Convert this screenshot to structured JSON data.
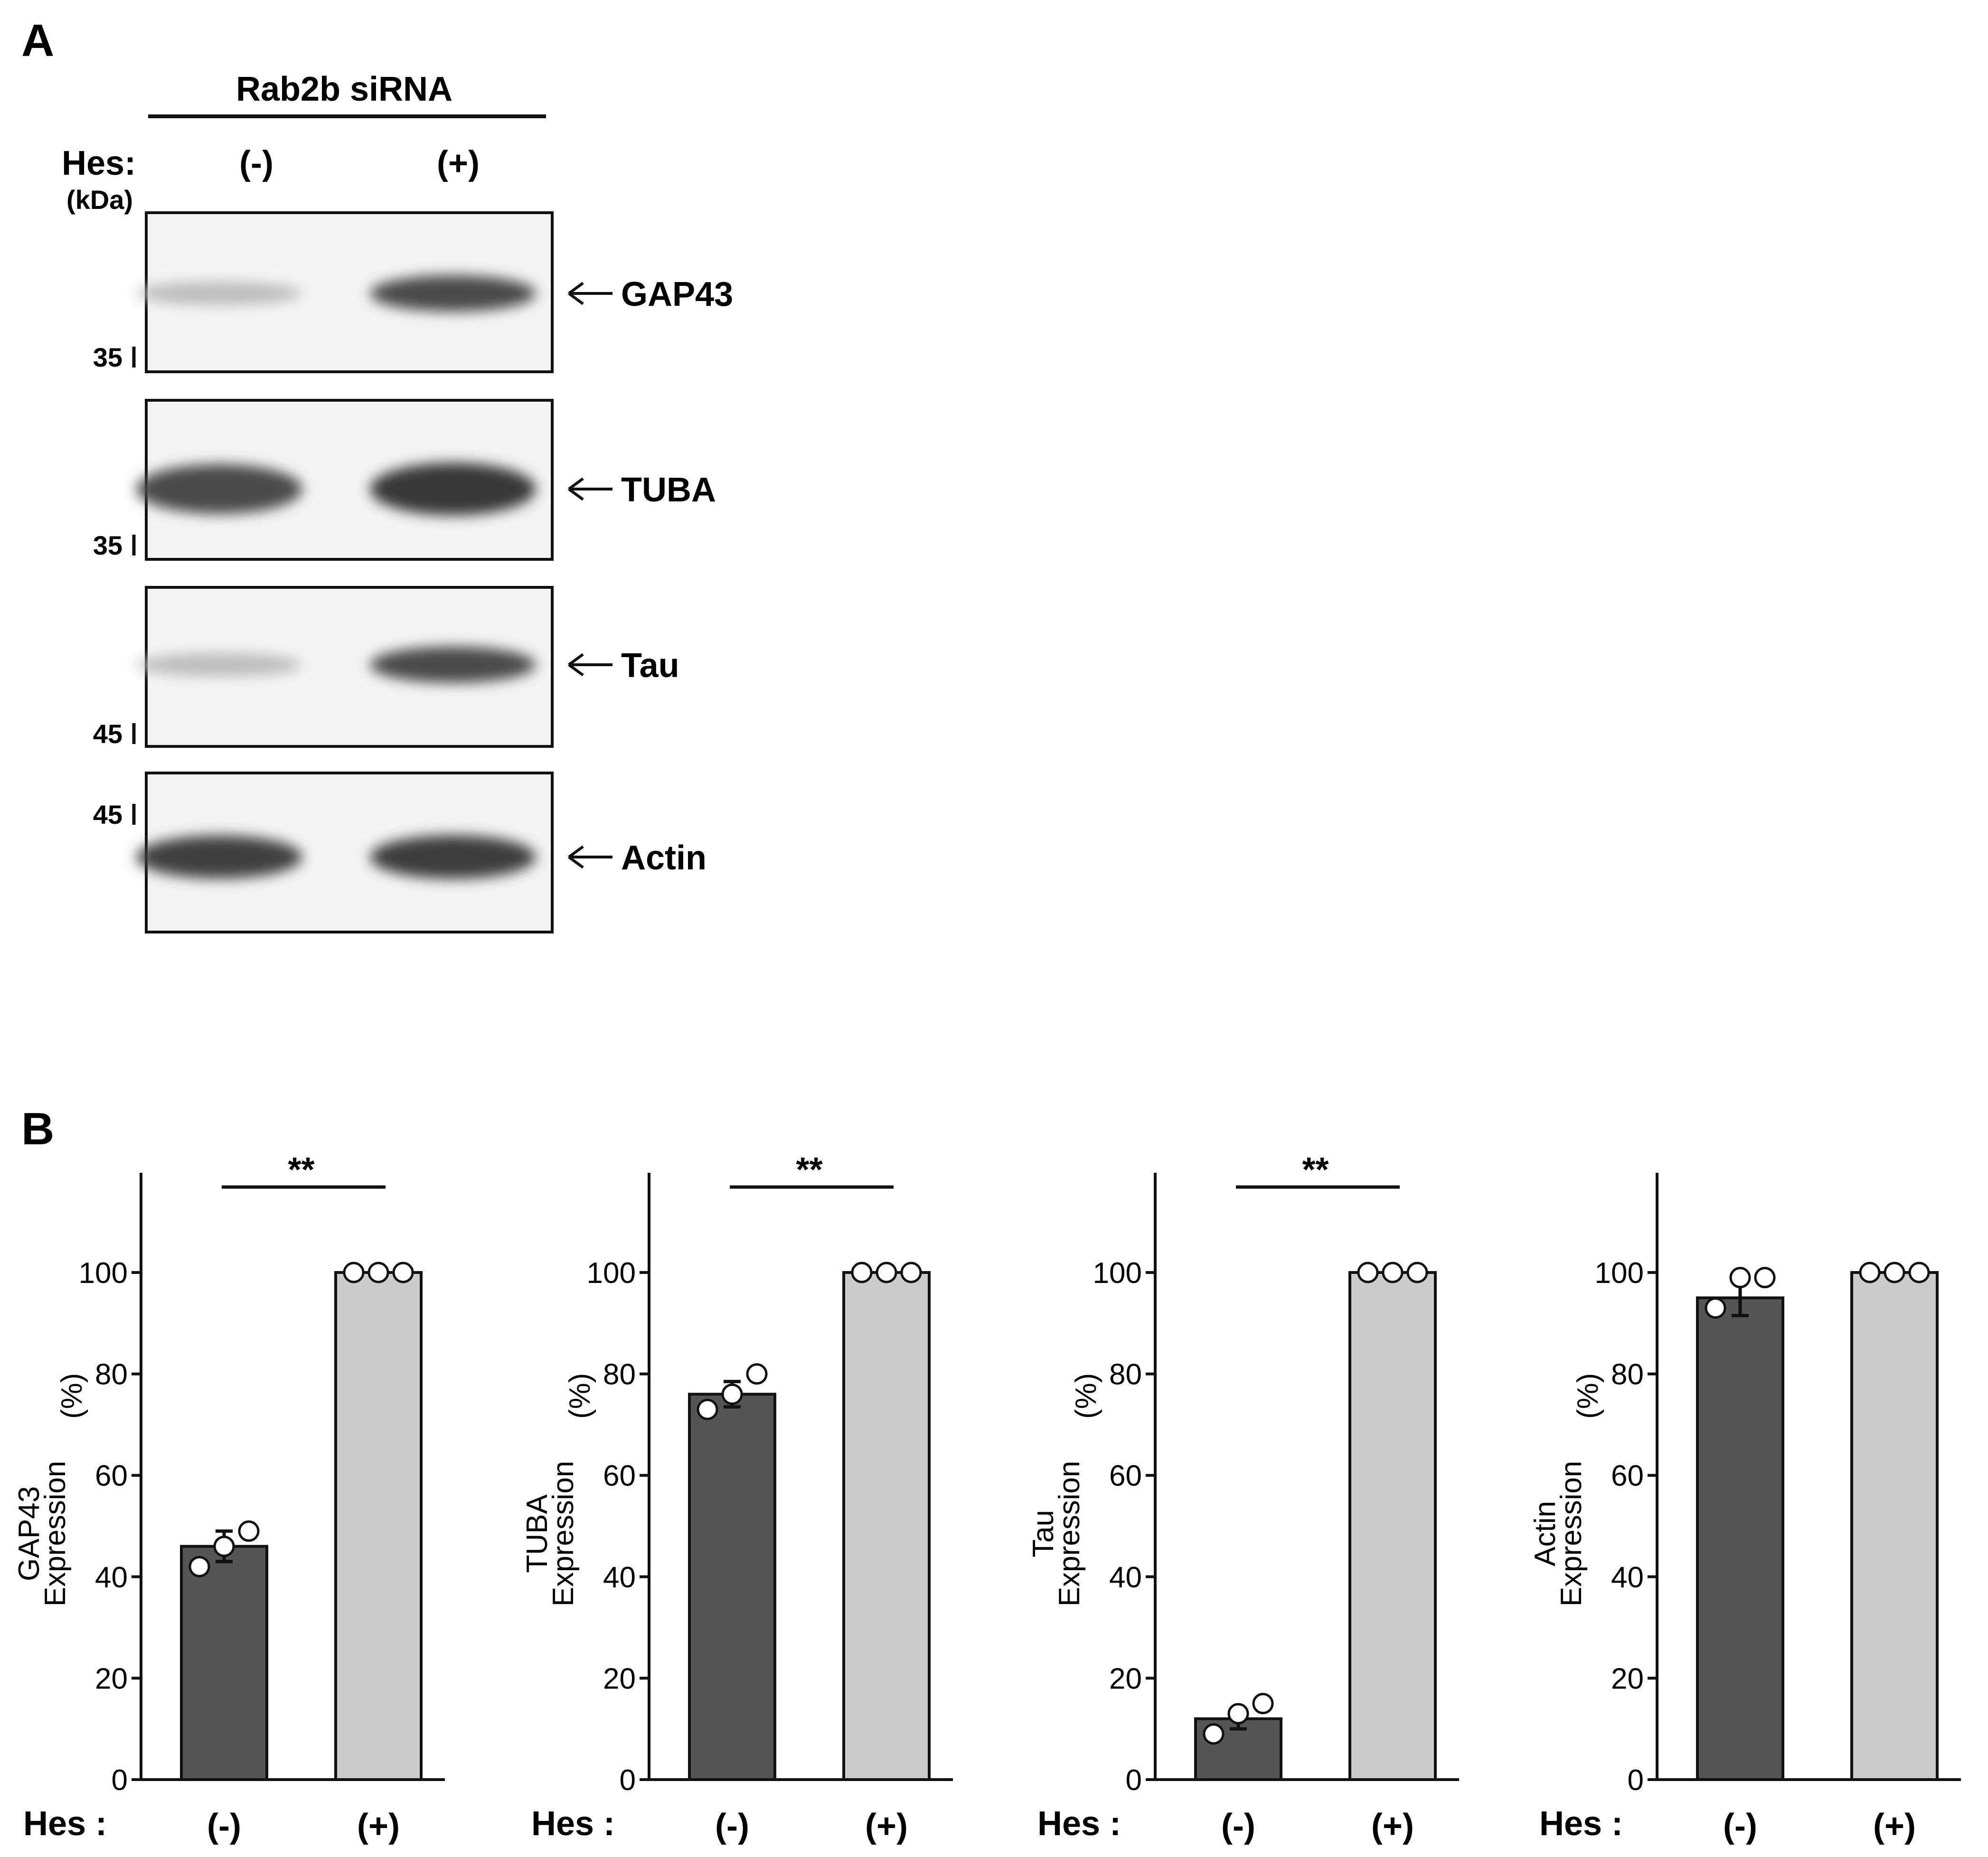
{
  "panel_a": {
    "letter": "A",
    "header": "Rab2b siRNA",
    "hes_label": "Hes:",
    "kda_label": "(kDa)",
    "lanes": [
      "(-)",
      "(+)"
    ],
    "blots": [
      {
        "target": "GAP43",
        "marker": "35",
        "band_intensity": [
          0.25,
          0.85
        ]
      },
      {
        "target": "TUBA",
        "marker": "35",
        "band_intensity": [
          0.85,
          0.95
        ]
      },
      {
        "target": "Tau",
        "marker": "45",
        "band_intensity": [
          0.25,
          0.85
        ]
      },
      {
        "target": "Actin",
        "marker": "45",
        "band_intensity": [
          0.9,
          0.92
        ]
      }
    ]
  },
  "panel_b": {
    "letter": "B",
    "hes_label": "Hes :",
    "colors": {
      "minus": "#555555",
      "plus": "#cccccc"
    }
  },
  "chart_data": [
    {
      "type": "bar",
      "categories": [
        "(-)",
        "(+)"
      ],
      "values": [
        46,
        100
      ],
      "errors": [
        3,
        0
      ],
      "points": [
        [
          42,
          46,
          49
        ],
        [
          100,
          100,
          100
        ]
      ],
      "ylabel": [
        "GAP43",
        "Expression",
        "(%)"
      ],
      "ylim": [
        0,
        120
      ],
      "yticks": [
        0,
        20,
        40,
        60,
        80,
        100
      ],
      "significance": "**"
    },
    {
      "type": "bar",
      "categories": [
        "(-)",
        "(+)"
      ],
      "values": [
        76,
        100
      ],
      "errors": [
        2.5,
        0
      ],
      "points": [
        [
          73,
          76,
          80
        ],
        [
          100,
          100,
          100
        ]
      ],
      "ylabel": [
        "TUBA",
        "Expression",
        "(%)"
      ],
      "ylim": [
        0,
        120
      ],
      "yticks": [
        0,
        20,
        40,
        60,
        80,
        100
      ],
      "significance": "**"
    },
    {
      "type": "bar",
      "categories": [
        "(-)",
        "(+)"
      ],
      "values": [
        12,
        100
      ],
      "errors": [
        2,
        0
      ],
      "points": [
        [
          9,
          13,
          15
        ],
        [
          100,
          100,
          100
        ]
      ],
      "ylabel": [
        "Tau",
        "Expression",
        "(%)"
      ],
      "ylim": [
        0,
        120
      ],
      "yticks": [
        0,
        20,
        40,
        60,
        80,
        100
      ],
      "significance": "**"
    },
    {
      "type": "bar",
      "categories": [
        "(-)",
        "(+)"
      ],
      "values": [
        95,
        100
      ],
      "errors": [
        3.5,
        0
      ],
      "points": [
        [
          93,
          99,
          99
        ],
        [
          100,
          100,
          100
        ]
      ],
      "ylabel": [
        "Actin",
        "Expression",
        "(%)"
      ],
      "ylim": [
        0,
        120
      ],
      "yticks": [
        0,
        20,
        40,
        60,
        80,
        100
      ],
      "significance": ""
    }
  ]
}
